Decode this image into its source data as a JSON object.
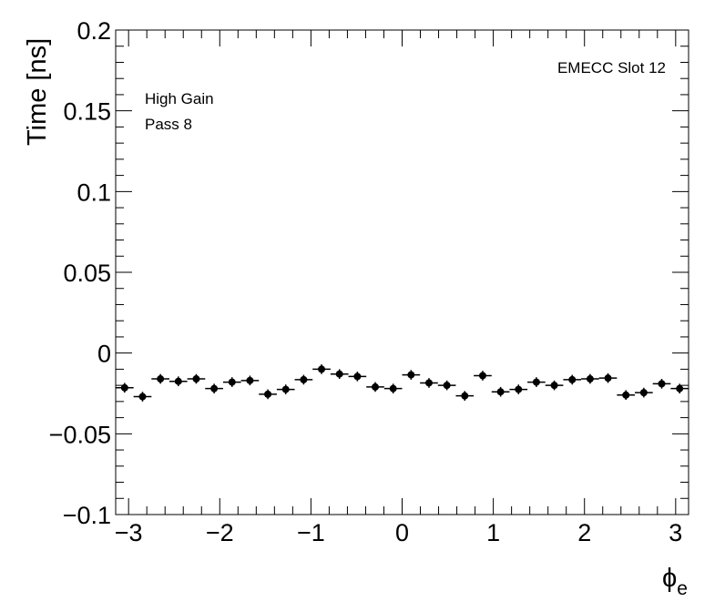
{
  "chart_data": {
    "type": "scatter",
    "title": "",
    "xlabel": "ϕ",
    "xlabel_subscript": "e",
    "ylabel": "Time [ns]",
    "xlim": [
      -3.1416,
      3.1416
    ],
    "ylim": [
      -0.1,
      0.2
    ],
    "x_ticks": [
      -3,
      -2,
      -1,
      0,
      1,
      2,
      3
    ],
    "x_tick_labels": [
      "−3",
      "−2",
      "−1",
      "0",
      "1",
      "2",
      "3"
    ],
    "y_ticks": [
      -0.1,
      -0.05,
      0,
      0.05,
      0.1,
      0.15,
      0.2
    ],
    "y_tick_labels": [
      "−0.1",
      "−0.05",
      "0",
      "0.05",
      "0.1",
      "0.15",
      "0.2"
    ],
    "grid": false,
    "marker_color": "#000000",
    "annotations": {
      "gain": "High Gain",
      "pass": "Pass 8",
      "slot": "EMECC Slot 12"
    },
    "series": [
      {
        "x": [
          -3.0434,
          -2.8471,
          -2.6507,
          -2.4544,
          -2.258,
          -2.0617,
          -1.8653,
          -1.669,
          -1.4726,
          -1.2763,
          -1.0799,
          -0.8836,
          -0.6872,
          -0.4909,
          -0.2945,
          -0.0982,
          0.0982,
          0.2945,
          0.4909,
          0.6872,
          0.8836,
          1.0799,
          1.2763,
          1.4726,
          1.669,
          1.8653,
          2.0617,
          2.258,
          2.4544,
          2.6507,
          2.8471,
          3.0434
        ],
        "y": [
          -0.0215,
          -0.027,
          -0.016,
          -0.0175,
          -0.016,
          -0.022,
          -0.018,
          -0.017,
          -0.0255,
          -0.0225,
          -0.0165,
          -0.01,
          -0.013,
          -0.0145,
          -0.021,
          -0.022,
          -0.0135,
          -0.0185,
          -0.02,
          -0.0265,
          -0.014,
          -0.024,
          -0.0225,
          -0.018,
          -0.02,
          -0.0165,
          -0.016,
          -0.0155,
          -0.026,
          -0.0245,
          -0.019,
          -0.022
        ],
        "yerr": [
          0.003,
          0.003,
          0.003,
          0.003,
          0.003,
          0.003,
          0.003,
          0.003,
          0.003,
          0.003,
          0.003,
          0.003,
          0.003,
          0.003,
          0.003,
          0.003,
          0.003,
          0.003,
          0.003,
          0.003,
          0.003,
          0.003,
          0.003,
          0.003,
          0.003,
          0.003,
          0.003,
          0.003,
          0.003,
          0.003,
          0.003,
          0.003
        ],
        "xerr": 0.0982
      }
    ]
  }
}
